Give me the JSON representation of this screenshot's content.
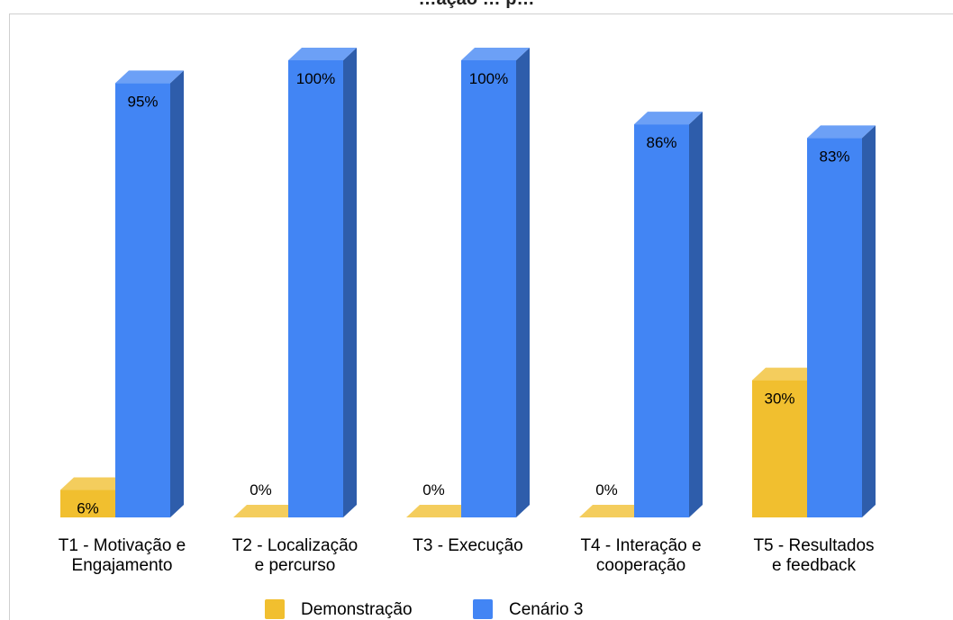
{
  "chart_data": {
    "type": "bar",
    "title": "…ação … p…",
    "categories": [
      [
        "T1 - Motivação e",
        "Engajamento"
      ],
      [
        "T2 - Localização",
        "e percurso"
      ],
      [
        "T3 - Execução"
      ],
      [
        "T4 - Interação e",
        "cooperação"
      ],
      [
        "T5 - Resultados",
        "e feedback"
      ]
    ],
    "series": [
      {
        "name": "Demonstração",
        "values": [
          6,
          0,
          0,
          0,
          30
        ],
        "labels": [
          "6%",
          "0%",
          "0%",
          "0%",
          "30%"
        ],
        "color": "#f1bf2f"
      },
      {
        "name": "Cenário 3",
        "values": [
          95,
          100,
          100,
          86,
          83
        ],
        "labels": [
          "95%",
          "100%",
          "100%",
          "86%",
          "83%"
        ],
        "color": "#4285f4"
      }
    ],
    "ylim": [
      0,
      100
    ],
    "grid": false,
    "legend": "bottom",
    "style": "3d"
  }
}
